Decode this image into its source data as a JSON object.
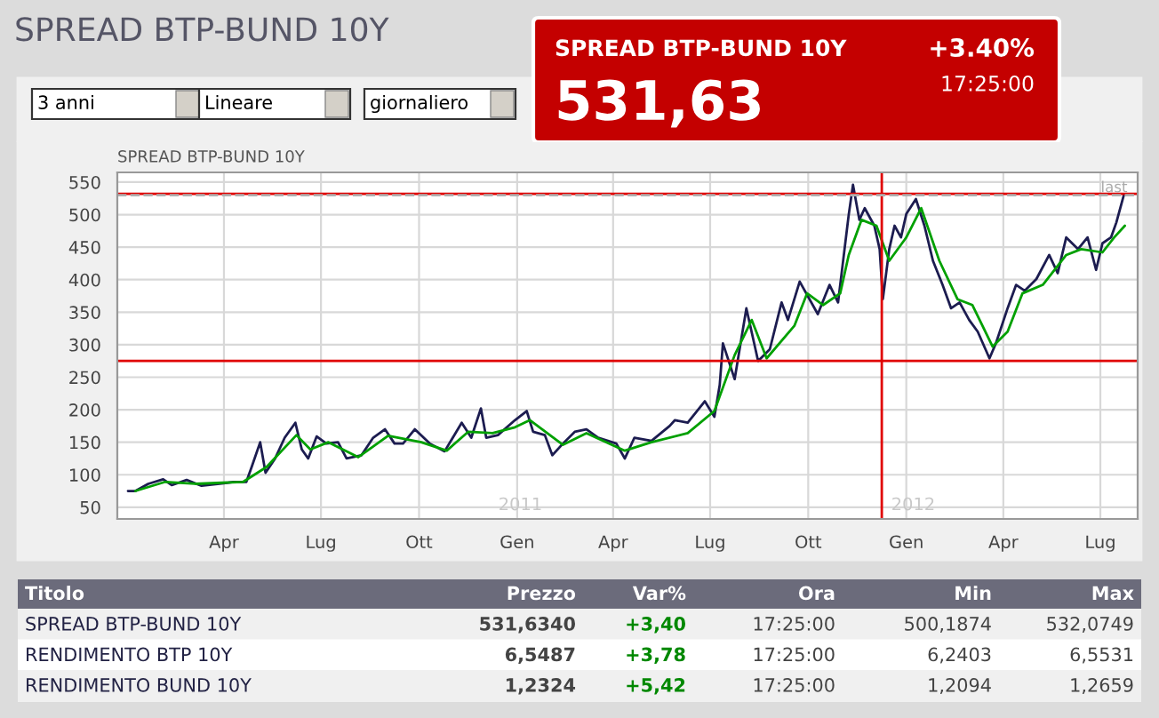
{
  "chart_data": [
    {
      "type": "other",
      "title": "SPREAD BTP-BUND 10Y",
      "annotations": [
        "3 anni",
        "Lineare",
        "giornaliero",
        "SPREAD BTP-BUND 10Y",
        "+3.40%",
        "17:25:00",
        "531,63"
      ]
    },
    {
      "type": "line",
      "title": "SPREAD BTP-BUND 10Y",
      "grid": true,
      "marker": "none",
      "line_style": "solid",
      "xlim": [
        "2009-12-22",
        "2012-08-05"
      ],
      "ylim": [
        32,
        565
      ],
      "xticks": [
        {
          "value": "2010-04-01",
          "label": "Apr"
        },
        {
          "value": "2010-07-01",
          "label": "Lug"
        },
        {
          "value": "2010-10-01",
          "label": "Ott"
        },
        {
          "value": "2011-01-01",
          "label": "Gen"
        },
        {
          "value": "2011-04-01",
          "label": "Apr"
        },
        {
          "value": "2011-07-01",
          "label": "Lug"
        },
        {
          "value": "2011-10-01",
          "label": "Ott"
        },
        {
          "value": "2012-01-01",
          "label": "Gen"
        },
        {
          "value": "2012-04-01",
          "label": "Apr"
        },
        {
          "value": "2012-07-01",
          "label": "Lug"
        }
      ],
      "yticks": [
        50,
        100,
        150,
        200,
        250,
        300,
        350,
        400,
        450,
        500,
        550
      ],
      "annotations": [
        "2011",
        "2012"
      ],
      "ref_lines": [
        {
          "axis": "x",
          "value": "2011-12-09",
          "color": "#e00000",
          "line_style": "solid"
        },
        {
          "axis": "y",
          "value": 532,
          "color": "#e00000",
          "line_style": "solid"
        },
        {
          "axis": "y",
          "value": 275,
          "color": "#e00000",
          "line_style": "solid"
        },
        {
          "axis": "y",
          "value": 530,
          "label": "last",
          "color": "#b0b0b0",
          "line_style": "dashed"
        }
      ],
      "series": [
        {
          "color": "#1c1c50",
          "x": [
            "2010-01-01",
            "2010-01-08",
            "2010-01-20",
            "2010-02-03",
            "2010-02-11",
            "2010-02-25",
            "2010-03-11",
            "2010-03-28",
            "2010-04-10",
            "2010-04-22",
            "2010-04-27",
            "2010-05-05",
            "2010-05-10",
            "2010-05-19",
            "2010-05-28",
            "2010-06-07",
            "2010-06-13",
            "2010-06-19",
            "2010-06-27",
            "2010-07-06",
            "2010-07-17",
            "2010-07-25",
            "2010-08-08",
            "2010-08-19",
            "2010-08-30",
            "2010-09-08",
            "2010-09-16",
            "2010-09-27",
            "2010-10-11",
            "2010-10-25",
            "2010-11-10",
            "2010-11-19",
            "2010-11-28",
            "2010-12-03",
            "2010-12-14",
            "2010-12-30",
            "2011-01-10",
            "2011-01-16",
            "2011-01-27",
            "2011-02-03",
            "2011-02-13",
            "2011-02-24",
            "2011-03-07",
            "2011-03-18",
            "2011-04-04",
            "2011-04-12",
            "2011-04-21",
            "2011-05-07",
            "2011-05-24",
            "2011-05-29",
            "2011-06-10",
            "2011-06-26",
            "2011-07-05",
            "2011-07-10",
            "2011-07-13",
            "2011-07-24",
            "2011-08-04",
            "2011-08-15",
            "2011-08-26",
            "2011-09-06",
            "2011-09-12",
            "2011-09-23",
            "2011-10-10",
            "2011-10-21",
            "2011-10-29",
            "2011-11-08",
            "2011-11-12",
            "2011-11-18",
            "2011-11-23",
            "2011-12-02",
            "2011-12-07",
            "2011-12-10",
            "2011-12-16",
            "2011-12-21",
            "2011-12-27",
            "2012-01-01",
            "2012-01-10",
            "2012-01-18",
            "2012-01-26",
            "2012-02-04",
            "2012-02-12",
            "2012-02-20",
            "2012-02-29",
            "2012-03-08",
            "2012-03-19",
            "2012-03-25",
            "2012-04-05",
            "2012-04-13",
            "2012-04-21",
            "2012-05-02",
            "2012-05-14",
            "2012-05-22",
            "2012-05-30",
            "2012-06-10",
            "2012-06-19",
            "2012-06-27",
            "2012-07-03",
            "2012-07-11",
            "2012-07-16",
            "2012-07-23"
          ],
          "values": [
            75,
            75,
            86,
            93,
            84,
            92,
            83,
            86,
            89,
            89,
            112,
            150,
            103,
            125,
            157,
            180,
            139,
            125,
            159,
            148,
            150,
            125,
            130,
            157,
            170,
            148,
            148,
            170,
            148,
            136,
            180,
            157,
            202,
            157,
            161,
            184,
            198,
            166,
            161,
            130,
            148,
            166,
            170,
            157,
            148,
            125,
            157,
            152,
            175,
            184,
            180,
            213,
            189,
            238,
            302,
            247,
            356,
            275,
            293,
            365,
            338,
            397,
            347,
            392,
            365,
            500,
            546,
            492,
            510,
            483,
            447,
            370,
            447,
            483,
            465,
            501,
            524,
            483,
            429,
            392,
            356,
            365,
            338,
            320,
            279,
            302,
            356,
            392,
            383,
            401,
            438,
            410,
            465,
            447,
            465,
            415,
            456,
            465,
            488,
            530
          ]
        },
        {
          "color": "#00a000",
          "x": [
            "2010-01-08",
            "2010-02-05",
            "2010-03-05",
            "2010-04-19",
            "2010-05-11",
            "2010-06-08",
            "2010-06-21",
            "2010-07-08",
            "2010-08-05",
            "2010-09-02",
            "2010-10-03",
            "2010-10-27",
            "2010-11-16",
            "2010-12-09",
            "2010-12-30",
            "2011-01-13",
            "2011-02-13",
            "2011-03-07",
            "2011-04-12",
            "2011-05-07",
            "2011-06-10",
            "2011-07-05",
            "2011-07-24",
            "2011-08-09",
            "2011-08-23",
            "2011-09-18",
            "2011-09-30",
            "2011-10-15",
            "2011-10-31",
            "2011-11-08",
            "2011-11-20",
            "2011-12-04",
            "2011-12-16",
            "2012-01-01",
            "2012-01-15",
            "2012-02-01",
            "2012-02-18",
            "2012-03-03",
            "2012-03-22",
            "2012-04-05",
            "2012-04-19",
            "2012-05-08",
            "2012-05-30",
            "2012-06-13",
            "2012-07-03",
            "2012-07-14",
            "2012-07-24"
          ],
          "values": [
            75,
            89,
            86,
            89,
            112,
            161,
            139,
            150,
            127,
            160,
            150,
            137,
            166,
            164,
            173,
            184,
            146,
            164,
            137,
            150,
            164,
            198,
            284,
            338,
            279,
            329,
            379,
            361,
            379,
            438,
            492,
            483,
            429,
            465,
            510,
            429,
            370,
            361,
            297,
            320,
            379,
            392,
            438,
            447,
            442,
            465,
            483
          ]
        }
      ]
    },
    {
      "type": "other",
      "annotations": [
        "Titolo",
        "Prezzo",
        "Var%",
        "Ora",
        "Min",
        "Max",
        "SPREAD BTP-BUND 10Y",
        "531,6340",
        "+3,40",
        "17:25:00",
        "500,1874",
        "532,0749",
        "RENDIMENTO BTP 10Y",
        "6,5487",
        "+3,78",
        "17:25:00",
        "6,2403",
        "6,5531",
        "RENDIMENTO BUND 10Y",
        "1,2324",
        "+5,42",
        "17:25:00",
        "1,2094",
        "1,2659"
      ]
    }
  ]
}
